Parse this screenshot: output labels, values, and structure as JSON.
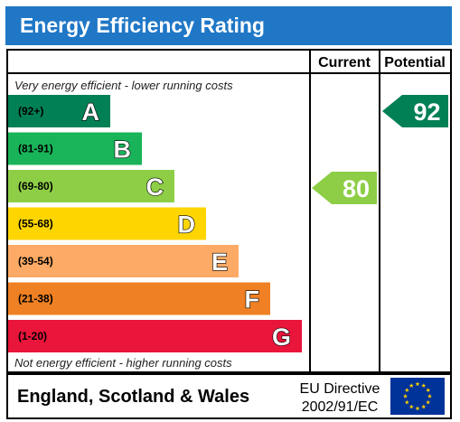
{
  "title": "Energy Efficiency Rating",
  "chart_data": {
    "type": "bar",
    "title": "Energy Efficiency Rating",
    "columns": [
      "Current",
      "Potential"
    ],
    "top_note": "Very energy efficient - lower running costs",
    "bottom_note": "Not energy efficient - higher running costs",
    "bands": [
      {
        "letter": "A",
        "range": "(92+)",
        "color": "#008054"
      },
      {
        "letter": "B",
        "range": "(81-91)",
        "color": "#19b459"
      },
      {
        "letter": "C",
        "range": "(69-80)",
        "color": "#8dce46"
      },
      {
        "letter": "D",
        "range": "(55-68)",
        "color": "#ffd500"
      },
      {
        "letter": "E",
        "range": "(39-54)",
        "color": "#fcaa65"
      },
      {
        "letter": "F",
        "range": "(21-38)",
        "color": "#ef8023"
      },
      {
        "letter": "G",
        "range": "(1-20)",
        "color": "#e9153b"
      }
    ],
    "current": {
      "value": 80,
      "band": "C",
      "color": "#8dce46"
    },
    "potential": {
      "value": 92,
      "band": "A",
      "color": "#008054"
    }
  },
  "footer": {
    "country": "England, Scotland & Wales",
    "directive_line1": "EU Directive",
    "directive_line2": "2002/91/EC",
    "flag_color": "#003399",
    "star_color": "#ffcc00"
  }
}
